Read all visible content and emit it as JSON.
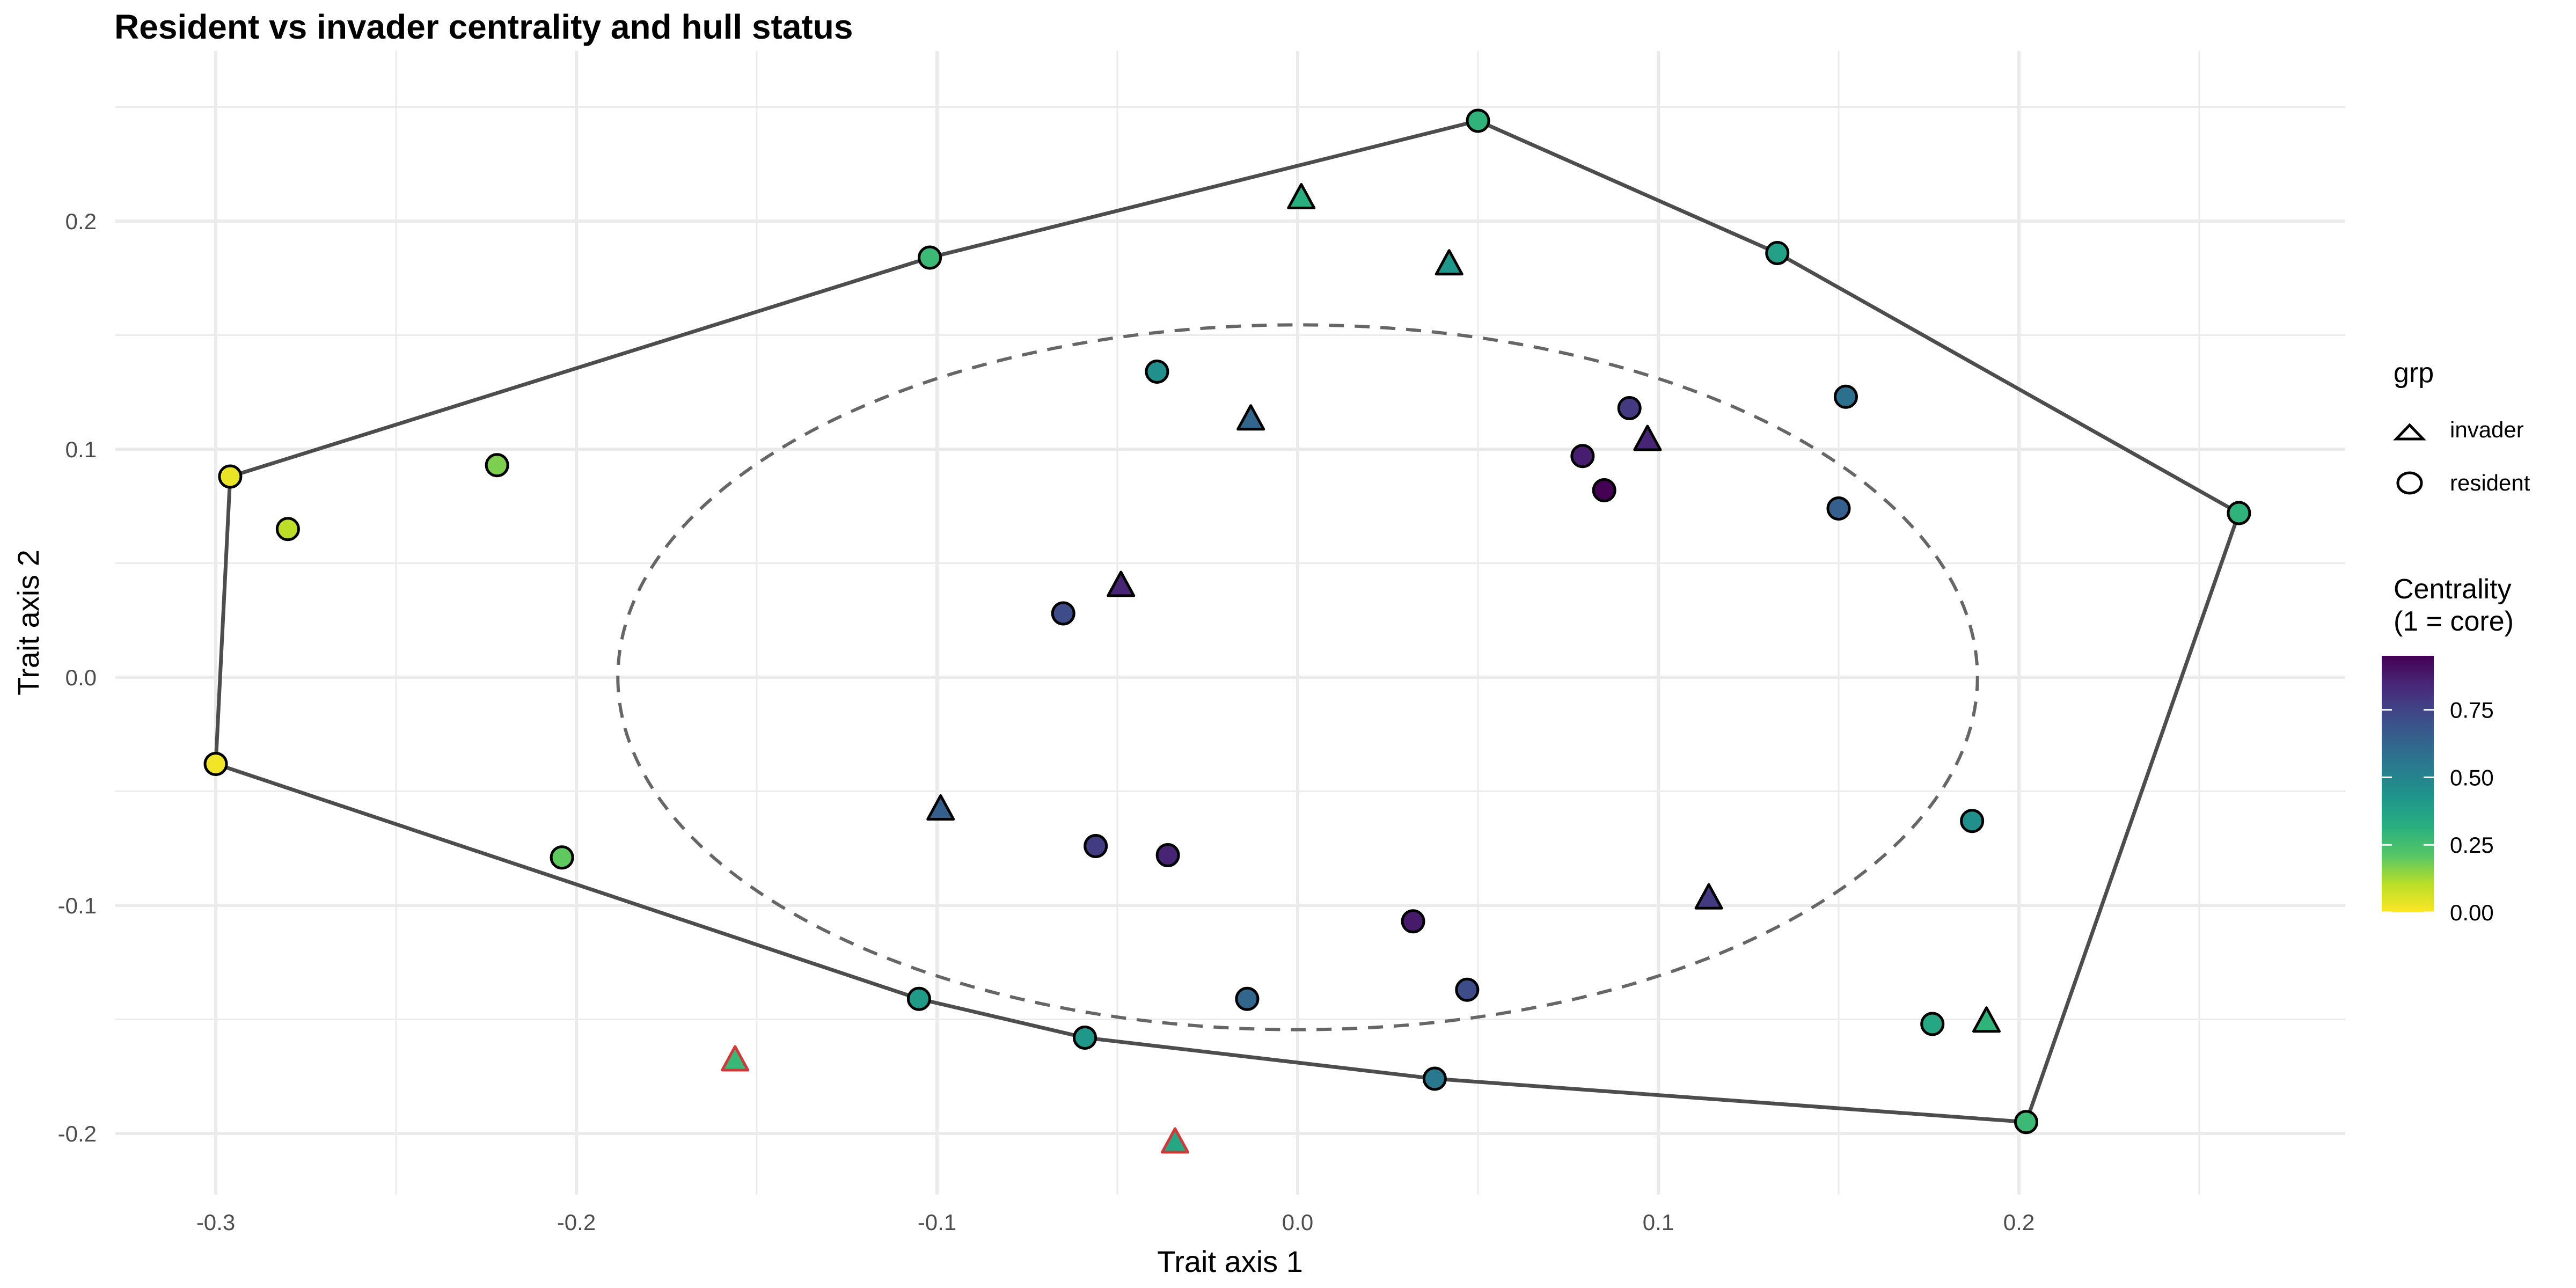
{
  "chart_data": {
    "type": "scatter",
    "title": "Resident vs invader centrality and hull status",
    "xlabel": "Trait axis 1",
    "ylabel": "Trait axis 2",
    "xlim": [
      -0.33,
      0.29
    ],
    "ylim": [
      -0.233,
      0.268
    ],
    "x_ticks": [
      -0.3,
      -0.2,
      -0.1,
      0.0,
      0.1,
      0.2
    ],
    "x_tick_labels": [
      "-0.3",
      "-0.2",
      "-0.1",
      "0.0",
      "0.1",
      "0.2"
    ],
    "y_ticks": [
      -0.2,
      -0.1,
      0.0,
      0.1,
      0.2
    ],
    "y_tick_labels": [
      "-0.2",
      "-0.1",
      "0.0",
      "0.1",
      "0.2"
    ],
    "grid": true,
    "legend": {
      "position": "right",
      "shape_title": "grp",
      "shape_entries": [
        {
          "label": "invader",
          "shape": "triangle"
        },
        {
          "label": "resident",
          "shape": "circle"
        }
      ],
      "color_title_lines": [
        "Centrality",
        "(1 = core)"
      ],
      "color_ticks": [
        0.75,
        0.5,
        0.25,
        0.0
      ],
      "color_tick_labels": [
        "0.75",
        "0.50",
        "0.25",
        "0.00"
      ],
      "color_range": [
        0.0,
        0.95
      ]
    },
    "colorscale": [
      "#FDE725",
      "#B8DE29",
      "#55C667",
      "#29AF7F",
      "#1F968B",
      "#287D8E",
      "#33638D",
      "#404788",
      "#482677",
      "#440154"
    ],
    "hull_color": "#4D4D4D",
    "ellipse": {
      "cx": 0.0,
      "cy": 0.0,
      "rx": 0.1885,
      "ry": 0.1545,
      "color": "#666666"
    },
    "outside_outline_color": "#D0383A",
    "points": [
      {
        "grp": "resident",
        "x": 0.05,
        "y": 0.244,
        "c": 0.3,
        "outside": false
      },
      {
        "grp": "resident",
        "x": 0.133,
        "y": 0.186,
        "c": 0.38,
        "outside": false
      },
      {
        "grp": "resident",
        "x": 0.261,
        "y": 0.072,
        "c": 0.3,
        "outside": false
      },
      {
        "grp": "resident",
        "x": 0.202,
        "y": -0.195,
        "c": 0.27,
        "outside": false
      },
      {
        "grp": "resident",
        "x": 0.038,
        "y": -0.176,
        "c": 0.55,
        "outside": false
      },
      {
        "grp": "resident",
        "x": -0.059,
        "y": -0.158,
        "c": 0.42,
        "outside": false
      },
      {
        "grp": "resident",
        "x": -0.105,
        "y": -0.141,
        "c": 0.4,
        "outside": false
      },
      {
        "grp": "resident",
        "x": -0.3,
        "y": -0.038,
        "c": 0.02,
        "outside": false
      },
      {
        "grp": "resident",
        "x": -0.296,
        "y": 0.088,
        "c": 0.03,
        "outside": false
      },
      {
        "grp": "resident",
        "x": -0.102,
        "y": 0.184,
        "c": 0.27,
        "outside": false
      },
      {
        "grp": "resident",
        "x": -0.28,
        "y": 0.065,
        "c": 0.1,
        "outside": false
      },
      {
        "grp": "resident",
        "x": -0.222,
        "y": 0.093,
        "c": 0.17,
        "outside": false
      },
      {
        "grp": "resident",
        "x": -0.204,
        "y": -0.079,
        "c": 0.2,
        "outside": false
      },
      {
        "grp": "resident",
        "x": -0.039,
        "y": 0.134,
        "c": 0.45,
        "outside": false
      },
      {
        "grp": "resident",
        "x": 0.079,
        "y": 0.097,
        "c": 0.87,
        "outside": false
      },
      {
        "grp": "resident",
        "x": 0.092,
        "y": 0.118,
        "c": 0.78,
        "outside": false
      },
      {
        "grp": "resident",
        "x": 0.085,
        "y": 0.082,
        "c": 0.95,
        "outside": false
      },
      {
        "grp": "resident",
        "x": 0.152,
        "y": 0.123,
        "c": 0.58,
        "outside": false
      },
      {
        "grp": "resident",
        "x": 0.15,
        "y": 0.074,
        "c": 0.65,
        "outside": false
      },
      {
        "grp": "resident",
        "x": -0.065,
        "y": 0.028,
        "c": 0.72,
        "outside": false
      },
      {
        "grp": "resident",
        "x": -0.056,
        "y": -0.074,
        "c": 0.77,
        "outside": false
      },
      {
        "grp": "resident",
        "x": -0.036,
        "y": -0.078,
        "c": 0.85,
        "outside": false
      },
      {
        "grp": "resident",
        "x": 0.032,
        "y": -0.107,
        "c": 0.88,
        "outside": false
      },
      {
        "grp": "resident",
        "x": 0.047,
        "y": -0.137,
        "c": 0.72,
        "outside": false
      },
      {
        "grp": "resident",
        "x": -0.014,
        "y": -0.141,
        "c": 0.62,
        "outside": false
      },
      {
        "grp": "resident",
        "x": 0.187,
        "y": -0.063,
        "c": 0.45,
        "outside": false
      },
      {
        "grp": "resident",
        "x": 0.176,
        "y": -0.152,
        "c": 0.35,
        "outside": false
      },
      {
        "grp": "invader",
        "x": 0.001,
        "y": 0.21,
        "c": 0.32,
        "outside": false
      },
      {
        "grp": "invader",
        "x": 0.042,
        "y": 0.181,
        "c": 0.42,
        "outside": false
      },
      {
        "grp": "invader",
        "x": -0.013,
        "y": 0.113,
        "c": 0.62,
        "outside": false
      },
      {
        "grp": "invader",
        "x": 0.097,
        "y": 0.104,
        "c": 0.85,
        "outside": false
      },
      {
        "grp": "invader",
        "x": -0.049,
        "y": 0.04,
        "c": 0.85,
        "outside": false
      },
      {
        "grp": "invader",
        "x": -0.099,
        "y": -0.058,
        "c": 0.65,
        "outside": false
      },
      {
        "grp": "invader",
        "x": 0.114,
        "y": -0.097,
        "c": 0.78,
        "outside": false
      },
      {
        "grp": "invader",
        "x": 0.191,
        "y": -0.151,
        "c": 0.3,
        "outside": false
      },
      {
        "grp": "invader",
        "x": -0.156,
        "y": -0.168,
        "c": 0.28,
        "outside": true
      },
      {
        "grp": "invader",
        "x": -0.034,
        "y": -0.204,
        "c": 0.35,
        "outside": true
      }
    ],
    "hull_order": [
      0,
      1,
      2,
      3,
      4,
      5,
      6,
      7,
      8,
      9
    ]
  }
}
